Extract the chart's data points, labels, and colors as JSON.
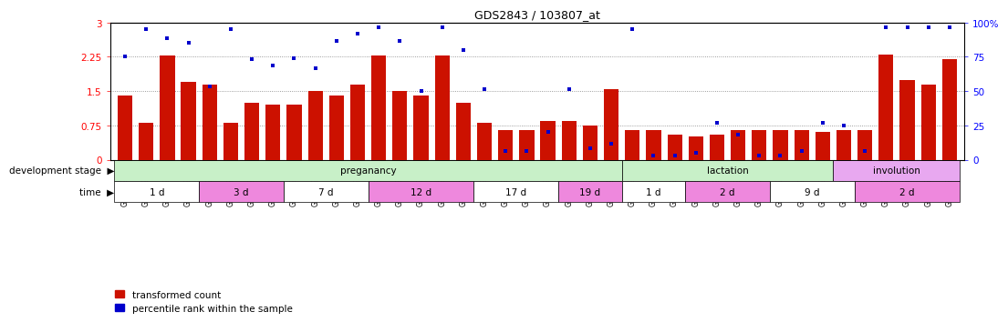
{
  "title": "GDS2843 / 103807_at",
  "samples": [
    "GSM202666",
    "GSM202667",
    "GSM202668",
    "GSM202669",
    "GSM202670",
    "GSM202671",
    "GSM202672",
    "GSM202673",
    "GSM202674",
    "GSM202675",
    "GSM202676",
    "GSM202677",
    "GSM202678",
    "GSM202679",
    "GSM202680",
    "GSM202681",
    "GSM202682",
    "GSM202683",
    "GSM202684",
    "GSM202685",
    "GSM202686",
    "GSM202687",
    "GSM202688",
    "GSM202689",
    "GSM202690",
    "GSM202691",
    "GSM202692",
    "GSM202693",
    "GSM202694",
    "GSM202695",
    "GSM202696",
    "GSM202697",
    "GSM202698",
    "GSM202699",
    "GSM202700",
    "GSM202701",
    "GSM202702",
    "GSM202703",
    "GSM202704",
    "GSM202705"
  ],
  "bar_values": [
    1.4,
    0.8,
    2.28,
    1.7,
    1.65,
    0.8,
    1.25,
    1.2,
    1.2,
    1.5,
    1.4,
    1.65,
    2.28,
    1.5,
    1.4,
    2.28,
    1.25,
    0.8,
    0.65,
    0.65,
    0.85,
    0.85,
    0.75,
    1.55,
    0.65,
    0.65,
    0.55,
    0.5,
    0.55,
    0.65,
    0.65,
    0.65,
    0.65,
    0.6,
    0.65,
    0.65,
    2.3,
    1.75,
    1.65,
    2.2
  ],
  "scatter_values": [
    2.25,
    2.85,
    2.65,
    2.55,
    1.6,
    2.85,
    2.2,
    2.05,
    2.22,
    2.0,
    2.6,
    2.75,
    2.9,
    2.6,
    1.5,
    2.9,
    2.4,
    1.55,
    0.2,
    0.2,
    0.6,
    1.55,
    0.25,
    0.35,
    2.85,
    0.1,
    0.1,
    0.15,
    0.8,
    0.55,
    0.1,
    0.1,
    0.2,
    0.8,
    0.75,
    0.2,
    2.9,
    2.9,
    2.9,
    2.9
  ],
  "bar_color": "#cc1100",
  "scatter_color": "#0000cc",
  "y_left_ticks": [
    0,
    0.75,
    1.5,
    2.25,
    3.0
  ],
  "y_left_labels": [
    "0",
    "0.75",
    "1.5",
    "2.25",
    "3"
  ],
  "y_right_ticks": [
    0,
    25,
    50,
    75,
    100
  ],
  "y_right_labels": [
    "0",
    "25",
    "50",
    "75",
    "100%"
  ],
  "stage_spans": [
    {
      "label": "preganancy",
      "start": 0,
      "end": 23,
      "color": "#c8f0c8"
    },
    {
      "label": "lactation",
      "start": 24,
      "end": 33,
      "color": "#c8f0c8"
    },
    {
      "label": "involution",
      "start": 34,
      "end": 39,
      "color": "#e8a8f0"
    }
  ],
  "time_groups": [
    {
      "label": "1 d",
      "start": 0,
      "end": 3,
      "color": "#ffffff"
    },
    {
      "label": "3 d",
      "start": 4,
      "end": 7,
      "color": "#ee88dd"
    },
    {
      "label": "7 d",
      "start": 8,
      "end": 11,
      "color": "#ffffff"
    },
    {
      "label": "12 d",
      "start": 12,
      "end": 16,
      "color": "#ee88dd"
    },
    {
      "label": "17 d",
      "start": 17,
      "end": 20,
      "color": "#ffffff"
    },
    {
      "label": "19 d",
      "start": 21,
      "end": 23,
      "color": "#ee88dd"
    },
    {
      "label": "1 d",
      "start": 24,
      "end": 26,
      "color": "#ffffff"
    },
    {
      "label": "2 d",
      "start": 27,
      "end": 30,
      "color": "#ee88dd"
    },
    {
      "label": "9 d",
      "start": 31,
      "end": 34,
      "color": "#ffffff"
    },
    {
      "label": "2 d",
      "start": 35,
      "end": 39,
      "color": "#ee88dd"
    }
  ],
  "legend_bar_label": "transformed count",
  "legend_scatter_label": "percentile rank within the sample",
  "dev_stage_label": "development stage",
  "time_label": "time",
  "ylim_left": [
    0,
    3.0
  ],
  "ylim_right": [
    0,
    100
  ],
  "chart_bg": "#ffffff"
}
